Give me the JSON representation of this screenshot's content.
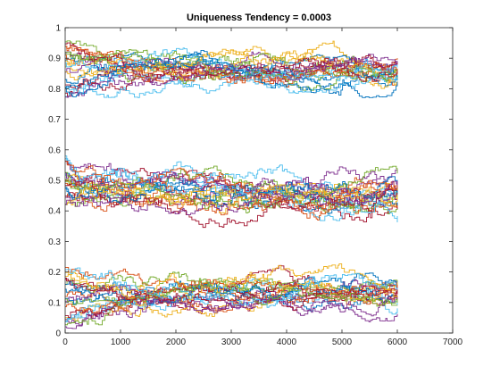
{
  "chart_data": {
    "type": "line",
    "title": "Uniqueness Tendency = 0.0003",
    "xlabel": "",
    "ylabel": "",
    "xlim": [
      0,
      7000
    ],
    "ylim": [
      0,
      1
    ],
    "xticks": [
      0,
      1000,
      2000,
      3000,
      4000,
      5000,
      6000,
      7000
    ],
    "yticks": [
      0,
      0.1,
      0.2,
      0.3,
      0.4,
      0.5,
      0.6,
      0.7,
      0.8,
      0.9,
      1
    ],
    "xtick_labels": [
      "0",
      "1000",
      "2000",
      "3000",
      "4000",
      "5000",
      "6000",
      "7000"
    ],
    "ytick_labels": [
      "0",
      "0.1",
      "0.2",
      "0.3",
      "0.4",
      "0.5",
      "0.6",
      "0.7",
      "0.8",
      "0.9",
      "1"
    ],
    "grid": false,
    "legend": "none",
    "line_style": "stairs",
    "x_range_of_series": [
      0,
      6000
    ],
    "bands": [
      {
        "center": 0.86,
        "start_range": [
          0.77,
          0.96
        ],
        "spread": 0.05,
        "max_value": 0.98,
        "min_value": 0.77
      },
      {
        "center": 0.45,
        "start_range": [
          0.42,
          0.58
        ],
        "spread": 0.06,
        "max_value": 0.59,
        "min_value": 0.33
      },
      {
        "center": 0.13,
        "start_range": [
          0.02,
          0.22
        ],
        "spread": 0.05,
        "max_value": 0.29,
        "min_value": 0.01
      }
    ],
    "series_per_band": 22,
    "colors": [
      "#0072BD",
      "#D95319",
      "#EDB120",
      "#7E2F8E",
      "#77AC30",
      "#4DBEEE",
      "#A2142F"
    ]
  }
}
